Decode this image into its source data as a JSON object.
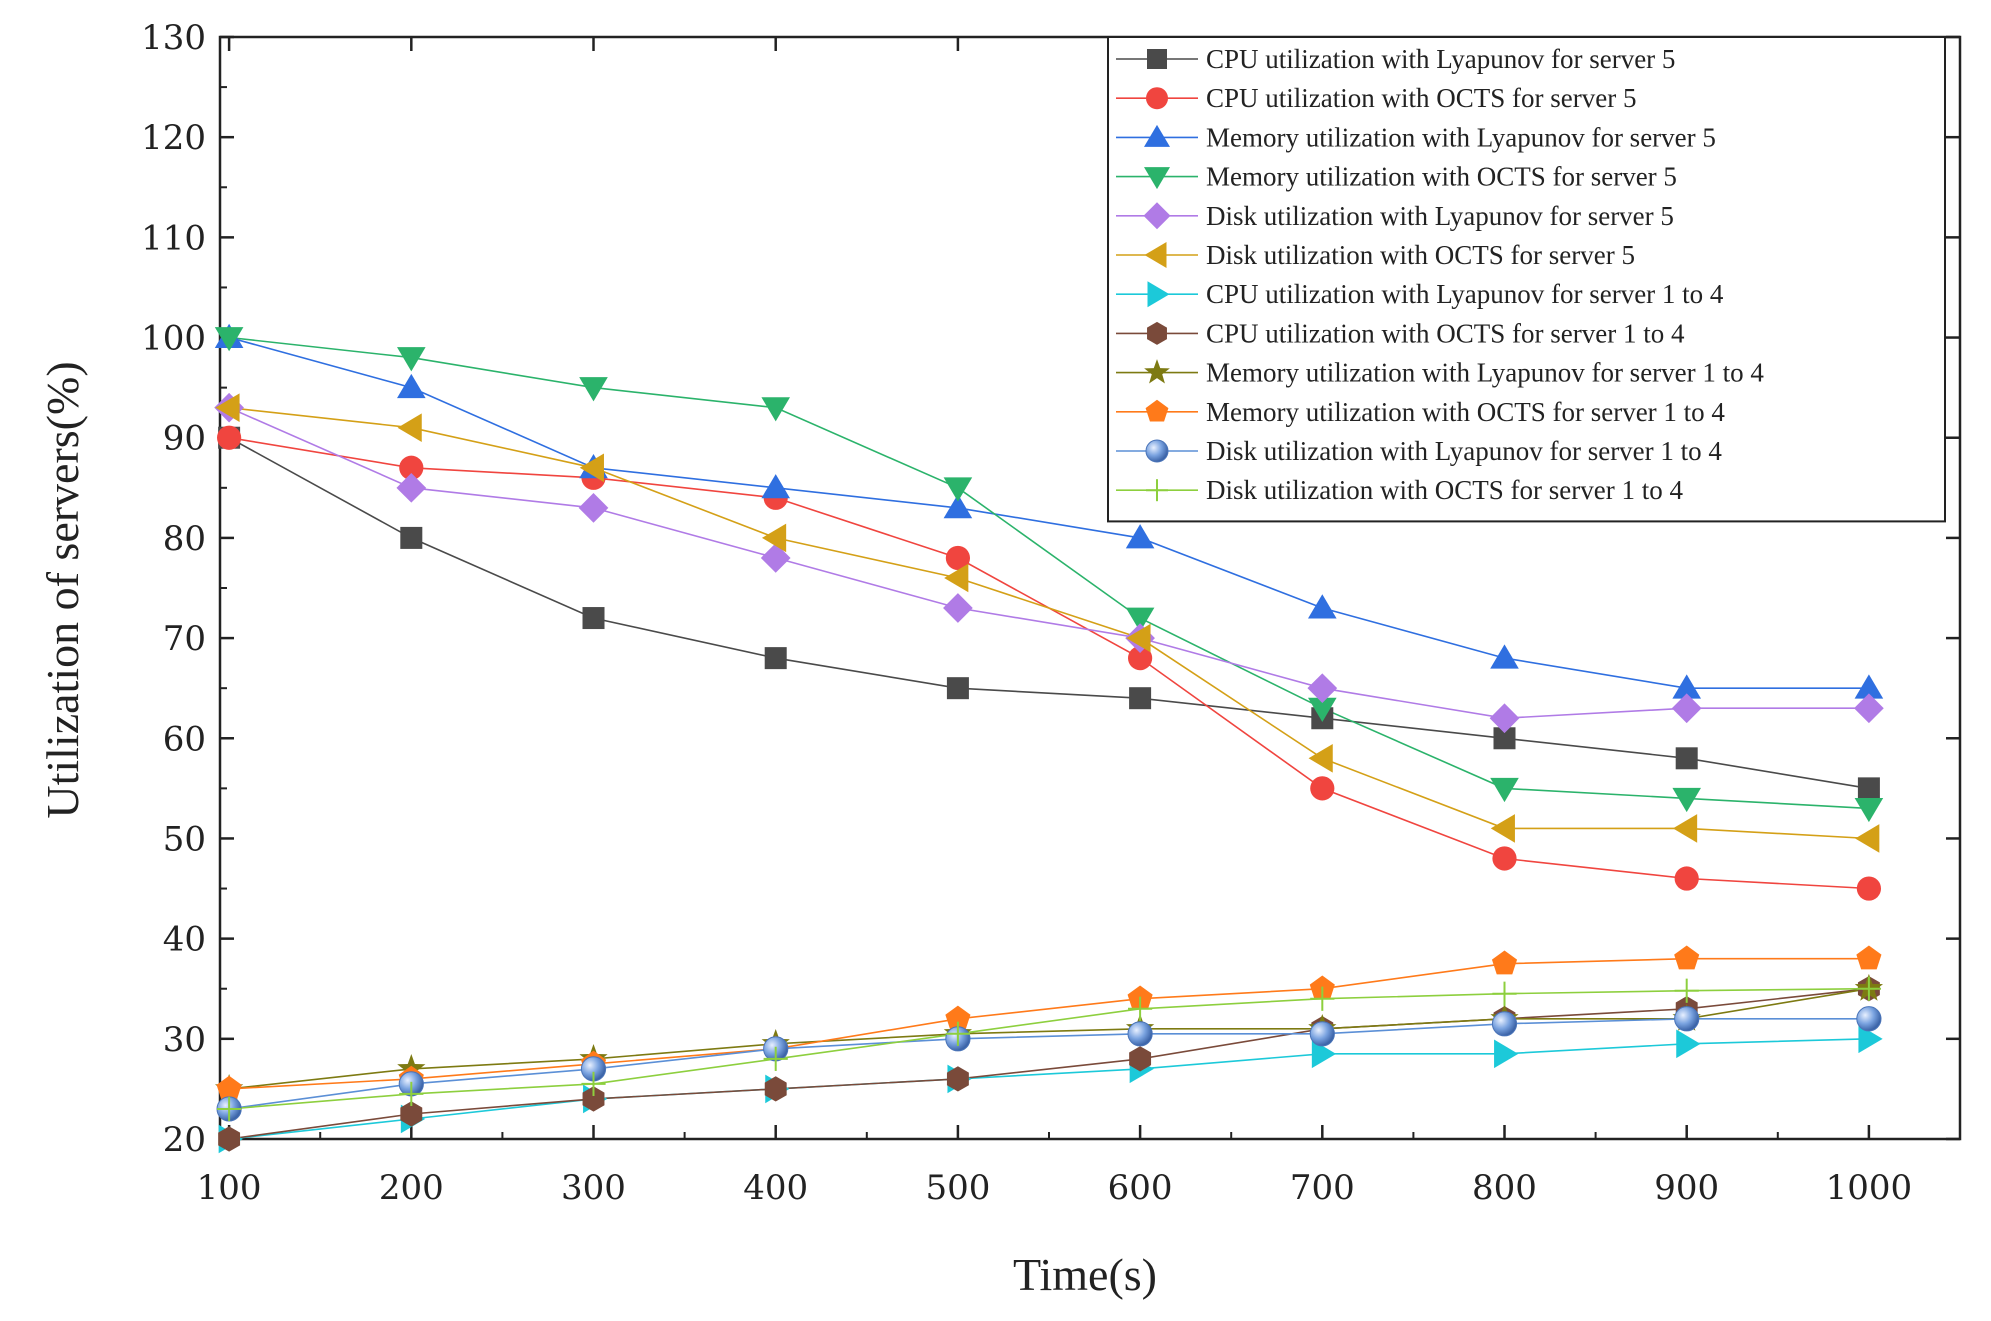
{
  "chart_data": {
    "type": "line",
    "title": "",
    "xlabel": "Time(s)",
    "ylabel": "Utilization of servers(%)",
    "xlim": [
      95,
      1050
    ],
    "ylim": [
      20,
      130
    ],
    "x": [
      100,
      200,
      300,
      400,
      500,
      600,
      700,
      800,
      900,
      1000
    ],
    "xticks": [
      100,
      200,
      300,
      400,
      500,
      600,
      700,
      800,
      900,
      1000
    ],
    "yticks": [
      20,
      30,
      40,
      50,
      60,
      70,
      80,
      90,
      100,
      110,
      120,
      130
    ],
    "legend_position": "top-right",
    "grid": false,
    "series": [
      {
        "name": "CPU utilization with Lyapunov for server 5",
        "color": "#4a4a4a",
        "marker": "square",
        "values": [
          90,
          80,
          72,
          68,
          65,
          64,
          62,
          60,
          58,
          55
        ]
      },
      {
        "name": "CPU utilization with OCTS for server 5",
        "color": "#f0453f",
        "marker": "circle",
        "values": [
          90,
          87,
          86,
          84,
          78,
          68,
          55,
          48,
          46,
          45
        ]
      },
      {
        "name": "Memory utilization with Lyapunov for server 5",
        "color": "#2f6fe0",
        "marker": "triangle-up",
        "values": [
          100,
          95,
          87,
          85,
          83,
          80,
          73,
          68,
          65,
          65
        ]
      },
      {
        "name": "Memory utilization with OCTS for server 5",
        "color": "#2bb36b",
        "marker": "triangle-down",
        "values": [
          100,
          98,
          95,
          93,
          85,
          72,
          63,
          55,
          54,
          53
        ]
      },
      {
        "name": "Disk utilization with Lyapunov for server 5",
        "color": "#b07be6",
        "marker": "diamond",
        "values": [
          93,
          85,
          83,
          78,
          73,
          70,
          65,
          62,
          63,
          63
        ]
      },
      {
        "name": "Disk utilization with OCTS for server 5",
        "color": "#d4a017",
        "marker": "triangle-left",
        "values": [
          93,
          91,
          87,
          80,
          76,
          70,
          58,
          51,
          51,
          50
        ]
      },
      {
        "name": "CPU utilization with Lyapunov for server 1 to 4",
        "color": "#1cc9d9",
        "marker": "triangle-right",
        "values": [
          20,
          22,
          24,
          25,
          26,
          27,
          28.5,
          28.5,
          29.5,
          30
        ]
      },
      {
        "name": "CPU utilization with OCTS for server 1 to 4",
        "color": "#7a4a3a",
        "marker": "hexagon",
        "values": [
          20,
          22.5,
          24,
          25,
          26,
          28,
          31,
          32,
          33,
          35
        ]
      },
      {
        "name": "Memory utilization with Lyapunov for server 1 to 4",
        "color": "#7d7a12",
        "marker": "star",
        "values": [
          25,
          27,
          28,
          29.5,
          30.5,
          31,
          31,
          32,
          32,
          35
        ]
      },
      {
        "name": "Memory utilization with OCTS for server 1 to 4",
        "color": "#ff7a1a",
        "marker": "pentagon",
        "values": [
          25,
          26,
          27.5,
          29,
          32,
          34,
          35,
          37.5,
          38,
          38
        ]
      },
      {
        "name": "Disk utilization with Lyapunov for server 1 to 4",
        "color": "#5b8fd6",
        "marker": "sphere",
        "values": [
          23,
          25.5,
          27,
          29,
          30,
          30.5,
          30.5,
          31.5,
          32,
          32
        ]
      },
      {
        "name": "Disk utilization with OCTS for server 1 to 4",
        "color": "#8dcf3e",
        "marker": "plus",
        "values": [
          23,
          24.5,
          25.5,
          28,
          30.5,
          33,
          34,
          34.5,
          34.8,
          35
        ]
      }
    ]
  }
}
